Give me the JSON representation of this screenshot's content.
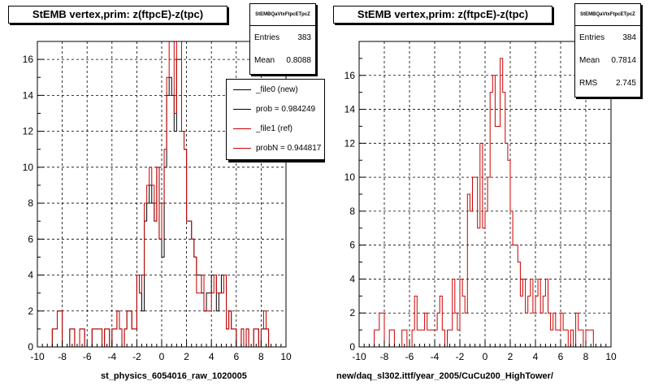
{
  "chart_data": [
    {
      "type": "histogram",
      "title": "StEMB  vertex,prim: z(ftpcE)-z(tpc)",
      "xlabel": "st_physics_6054016_raw_1020005",
      "xlim": [
        -10,
        10
      ],
      "ylim": [
        0,
        17
      ],
      "xticks": [
        "-10",
        "-8",
        "-6",
        "-4",
        "-2",
        "0",
        "2",
        "4",
        "6",
        "8",
        "10"
      ],
      "yticks": [
        "0",
        "2",
        "4",
        "6",
        "8",
        "10",
        "12",
        "14",
        "16"
      ],
      "grid": true,
      "bin_start": -9.0,
      "bin_width": 0.2,
      "stats": {
        "name": "StEMBQaVtxFtpcETpcZ",
        "entries_label": "Entries",
        "entries": "383",
        "mean_label": "Mean",
        "mean": "0.8088"
      },
      "legend": [
        {
          "label": "_file0 (new)",
          "color": "#000000"
        },
        {
          "label": "prob = 0.984249",
          "color": "#000000"
        },
        {
          "label": "_file1 (ref)",
          "color": "#cc0000"
        },
        {
          "label": "probN = 0.944817",
          "color": "#cc0000"
        }
      ],
      "series": [
        {
          "name": "_file0 (new)",
          "color": "#000000",
          "values": [
            0,
            1,
            1,
            2,
            2,
            0,
            0,
            0,
            1,
            1,
            0,
            0,
            1,
            1,
            0,
            0,
            0,
            1,
            1,
            1,
            1,
            0,
            1,
            1,
            0,
            1,
            1,
            2,
            1,
            0,
            1,
            2,
            2,
            1,
            1,
            4,
            3,
            2,
            7,
            8,
            9,
            8,
            7,
            10,
            6,
            5,
            10,
            14,
            15,
            14,
            12,
            16,
            16,
            12,
            11,
            7,
            7,
            6,
            5,
            4,
            4,
            3,
            2,
            3,
            3,
            4,
            4,
            2,
            3,
            4,
            4,
            1,
            2,
            1,
            1,
            0,
            0,
            1,
            0,
            1,
            0,
            0,
            1,
            1,
            0,
            1,
            1,
            1,
            0,
            0
          ]
        },
        {
          "name": "_file1 (ref)",
          "color": "#cc0000",
          "values": [
            0,
            1,
            1,
            2,
            2,
            0,
            0,
            0,
            1,
            1,
            0,
            0,
            1,
            1,
            0,
            0,
            0,
            1,
            1,
            1,
            1,
            0,
            1,
            1,
            0,
            1,
            1,
            2,
            1,
            0,
            1,
            2,
            2,
            1,
            1,
            4,
            3,
            4,
            8,
            9,
            10,
            9,
            7,
            10,
            6,
            8,
            11,
            15,
            17,
            17,
            13,
            17,
            17,
            12,
            11,
            7,
            7,
            6,
            5,
            3,
            3,
            4,
            2,
            2,
            2,
            3,
            4,
            3,
            3,
            3,
            4,
            1,
            2,
            1,
            1,
            0,
            0,
            1,
            0,
            1,
            0,
            0,
            1,
            1,
            0,
            1,
            2,
            1,
            0,
            0
          ]
        }
      ]
    },
    {
      "type": "histogram",
      "title": "StEMB  vertex,prim: z(ftpcE)-z(tpc)",
      "xlabel": "new/daq_sl302.ittf/year_2005/CuCu200_HighTower/",
      "xlim": [
        -10,
        10
      ],
      "ylim": [
        0,
        18
      ],
      "xticks": [
        "-10",
        "-8",
        "-6",
        "-4",
        "-2",
        "0",
        "2",
        "4",
        "6",
        "8",
        "10"
      ],
      "yticks": [
        "0",
        "2",
        "4",
        "6",
        "8",
        "10",
        "12",
        "14",
        "16"
      ],
      "grid": true,
      "bin_start": -9.0,
      "bin_width": 0.2,
      "stats": {
        "name": "StEMBQaVtxFtpcETpcZ",
        "entries_label": "Entries",
        "entries": "384",
        "mean_label": "Mean",
        "mean": "0.7814",
        "rms_label": "RMS",
        "rms": "2.745"
      },
      "series": [
        {
          "name": "",
          "color": "#cc0000",
          "values": [
            0,
            1,
            1,
            2,
            2,
            0,
            0,
            1,
            1,
            0,
            0,
            0,
            1,
            1,
            0,
            0,
            1,
            3,
            1,
            1,
            1,
            2,
            1,
            1,
            1,
            1,
            2,
            3,
            1,
            0,
            1,
            1,
            4,
            2,
            1,
            4,
            3,
            2,
            9,
            8,
            10,
            10,
            7,
            12,
            7,
            8,
            10,
            15,
            16,
            13,
            13,
            17,
            15,
            12,
            11,
            8,
            6,
            6,
            5,
            3,
            4,
            2,
            3,
            4,
            2,
            3,
            4,
            2,
            3,
            4,
            2,
            1,
            2,
            1,
            1,
            2,
            1,
            1,
            0,
            1,
            0,
            2,
            1,
            1,
            0,
            1,
            1,
            1,
            0,
            0
          ]
        }
      ]
    }
  ]
}
